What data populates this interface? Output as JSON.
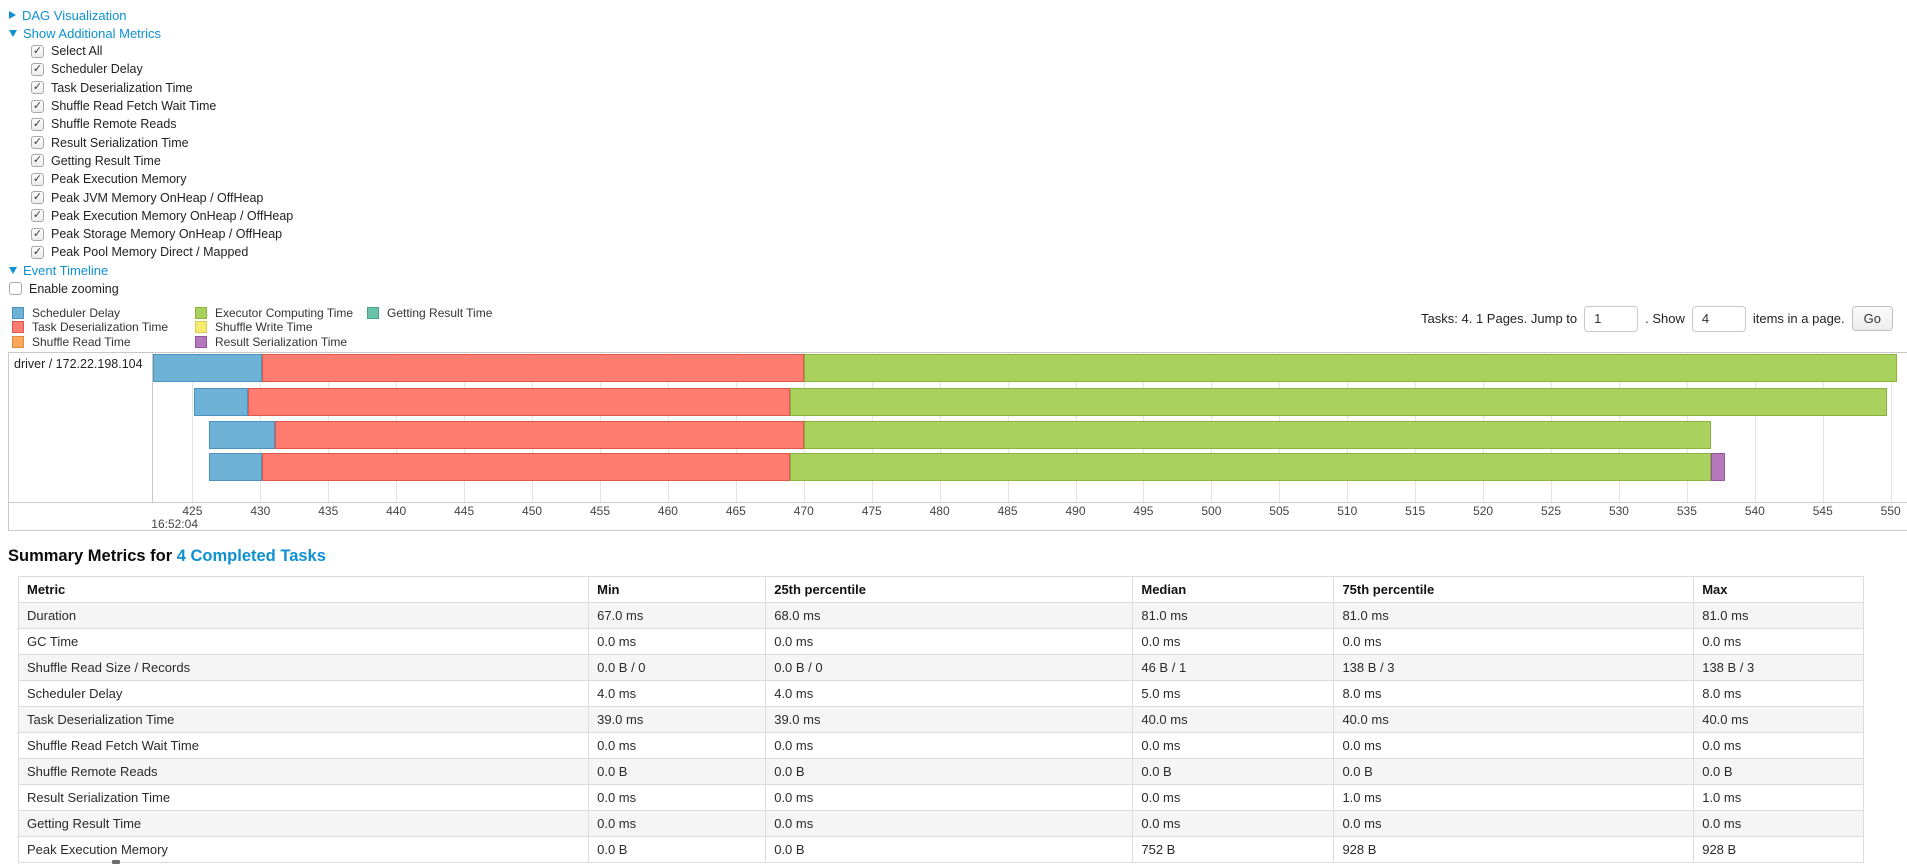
{
  "controls": {
    "dag_visualization": "DAG Visualization",
    "show_additional_metrics": "Show Additional Metrics",
    "check_glyph": "✓",
    "metric_checkboxes": [
      {
        "label": "Select All",
        "checked": true
      },
      {
        "label": "Scheduler Delay",
        "checked": true
      },
      {
        "label": "Task Deserialization Time",
        "checked": true
      },
      {
        "label": "Shuffle Read Fetch Wait Time",
        "checked": true
      },
      {
        "label": "Shuffle Remote Reads",
        "checked": true
      },
      {
        "label": "Result Serialization Time",
        "checked": true
      },
      {
        "label": "Getting Result Time",
        "checked": true
      },
      {
        "label": "Peak Execution Memory",
        "checked": true
      },
      {
        "label": "Peak JVM Memory OnHeap / OffHeap",
        "checked": true
      },
      {
        "label": "Peak Execution Memory OnHeap / OffHeap",
        "checked": true
      },
      {
        "label": "Peak Storage Memory OnHeap / OffHeap",
        "checked": true
      },
      {
        "label": "Peak Pool Memory Direct / Mapped",
        "checked": true
      }
    ],
    "event_timeline": "Event Timeline",
    "enable_zooming": {
      "label": "Enable zooming",
      "checked": false
    }
  },
  "legend": {
    "items": [
      {
        "key": "scheduler_delay",
        "label": "Scheduler Delay",
        "fill": "#6FB2D8",
        "border": "#4E93BE"
      },
      {
        "key": "task_deserialization",
        "label": "Task Deserialization Time",
        "fill": "#FF7D70",
        "border": "#E0564C"
      },
      {
        "key": "shuffle_read",
        "label": "Shuffle Read Time",
        "fill": "#FCA858",
        "border": "#E1883B"
      },
      {
        "key": "executor_computing",
        "label": "Executor Computing Time",
        "fill": "#A9D15D",
        "border": "#8BB33C"
      },
      {
        "key": "shuffle_write",
        "label": "Shuffle Write Time",
        "fill": "#F7EB6F",
        "border": "#DACB4E"
      },
      {
        "key": "result_serialization",
        "label": "Result Serialization Time",
        "fill": "#B678BC",
        "border": "#99549F"
      },
      {
        "key": "getting_result",
        "label": "Getting Result Time",
        "fill": "#68C2A9",
        "border": "#48A289"
      }
    ]
  },
  "pagination": {
    "tasks_text": "Tasks: 4. 1 Pages. Jump to",
    "jump_value": "1",
    "show_text": ". Show",
    "show_value": "4",
    "items_text": "items in a page.",
    "go_label": "Go"
  },
  "chart_data": {
    "type": "timeline-gantt",
    "row_label": "driver / 172.22.198.104",
    "x_domain": [
      422.1,
      551.2
    ],
    "x_ticks": [
      425,
      430,
      435,
      440,
      445,
      450,
      455,
      460,
      465,
      470,
      475,
      480,
      485,
      490,
      495,
      500,
      505,
      510,
      515,
      520,
      525,
      530,
      535,
      540,
      545,
      550
    ],
    "x_start_time_label": "16:52:04",
    "tasks": [
      {
        "segments": [
          {
            "metric": "scheduler_delay",
            "start": 422.1,
            "end": 430.1
          },
          {
            "metric": "task_deserialization",
            "start": 430.1,
            "end": 470.0
          },
          {
            "metric": "executor_computing",
            "start": 470.0,
            "end": 550.5
          }
        ]
      },
      {
        "segments": [
          {
            "metric": "scheduler_delay",
            "start": 425.1,
            "end": 429.1
          },
          {
            "metric": "task_deserialization",
            "start": 429.1,
            "end": 469.0
          },
          {
            "metric": "executor_computing",
            "start": 469.0,
            "end": 549.7
          }
        ]
      },
      {
        "segments": [
          {
            "metric": "scheduler_delay",
            "start": 426.2,
            "end": 431.1
          },
          {
            "metric": "task_deserialization",
            "start": 431.1,
            "end": 470.0
          },
          {
            "metric": "executor_computing",
            "start": 470.0,
            "end": 536.8
          }
        ]
      },
      {
        "segments": [
          {
            "metric": "scheduler_delay",
            "start": 426.2,
            "end": 430.1
          },
          {
            "metric": "task_deserialization",
            "start": 430.1,
            "end": 469.0
          },
          {
            "metric": "executor_computing",
            "start": 469.0,
            "end": 536.8
          },
          {
            "metric": "result_serialization",
            "start": 536.8,
            "end": 537.8
          }
        ]
      }
    ]
  },
  "summary": {
    "heading_prefix": "Summary Metrics for",
    "heading_link": "4 Completed Tasks",
    "table": {
      "columns": [
        "Metric",
        "Min",
        "25th percentile",
        "Median",
        "75th percentile",
        "Max"
      ],
      "rows": [
        [
          "Duration",
          "67.0 ms",
          "68.0 ms",
          "81.0 ms",
          "81.0 ms",
          "81.0 ms"
        ],
        [
          "GC Time",
          "0.0 ms",
          "0.0 ms",
          "0.0 ms",
          "0.0 ms",
          "0.0 ms"
        ],
        [
          "Shuffle Read Size / Records",
          "0.0 B / 0",
          "0.0 B / 0",
          "46 B / 1",
          "138 B / 3",
          "138 B / 3"
        ],
        [
          "Scheduler Delay",
          "4.0 ms",
          "4.0 ms",
          "5.0 ms",
          "8.0 ms",
          "8.0 ms"
        ],
        [
          "Task Deserialization Time",
          "39.0 ms",
          "39.0 ms",
          "40.0 ms",
          "40.0 ms",
          "40.0 ms"
        ],
        [
          "Shuffle Read Fetch Wait Time",
          "0.0 ms",
          "0.0 ms",
          "0.0 ms",
          "0.0 ms",
          "0.0 ms"
        ],
        [
          "Shuffle Remote Reads",
          "0.0 B",
          "0.0 B",
          "0.0 B",
          "0.0 B",
          "0.0 B"
        ],
        [
          "Result Serialization Time",
          "0.0 ms",
          "0.0 ms",
          "0.0 ms",
          "1.0 ms",
          "1.0 ms"
        ],
        [
          "Getting Result Time",
          "0.0 ms",
          "0.0 ms",
          "0.0 ms",
          "0.0 ms",
          "0.0 ms"
        ],
        [
          "Peak Execution Memory",
          "0.0 B",
          "0.0 B",
          "752 B",
          "928 B",
          "928 B"
        ]
      ]
    }
  }
}
